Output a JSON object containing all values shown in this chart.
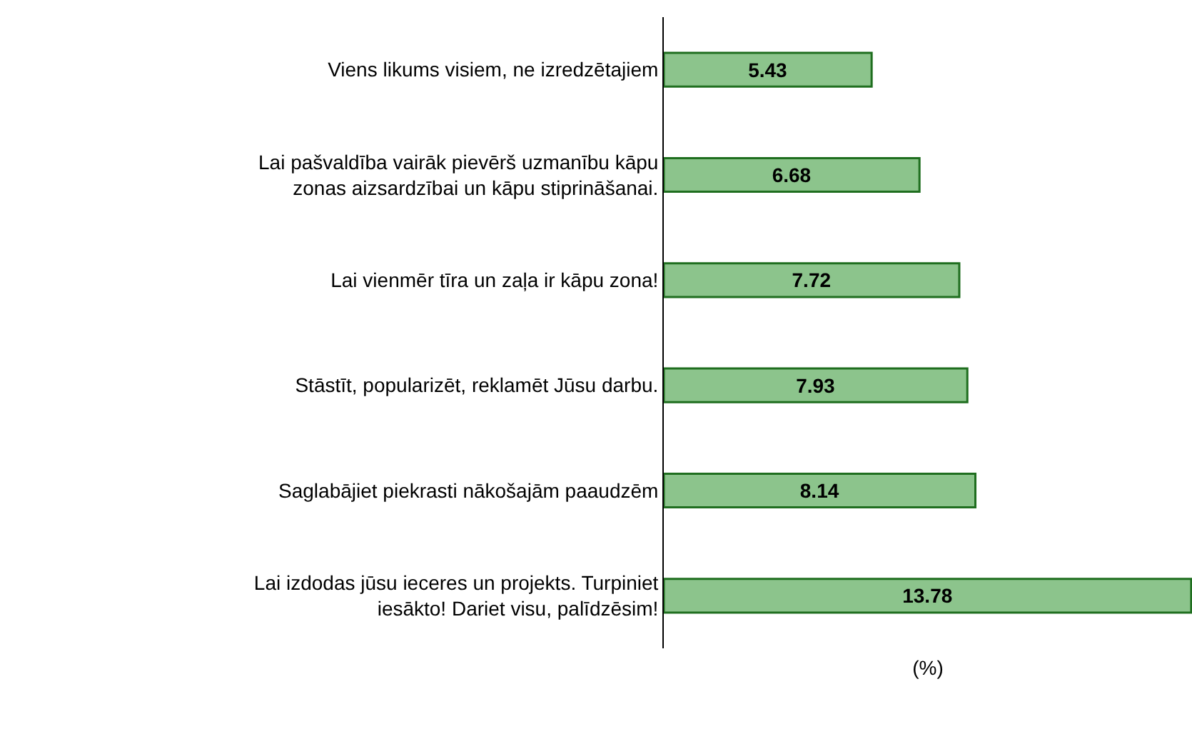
{
  "chart_data": {
    "type": "bar",
    "orientation": "horizontal",
    "categories": [
      "Viens likums visiem, ne izredzētajiem",
      "Lai pašvaldība vairāk pievērš uzmanību kāpu zonas aizsardzībai un kāpu stiprināšanai.",
      "Lai vienmēr tīra un zaļa ir kāpu zona!",
      "Stāstīt, popularizēt, reklamēt Jūsu darbu.",
      "Saglabājiet piekrasti nākošajām paaudzēm",
      "Lai izdodas jūsu ieceres un projekts. Turpiniet iesākto! Dariet visu, palīdzēsim!"
    ],
    "values": [
      5.43,
      6.68,
      7.72,
      7.93,
      8.14,
      13.78
    ],
    "color": "#8cc48c",
    "xlabel": "(%)",
    "xlim": [
      0,
      13.8
    ],
    "data_labels": true,
    "tick_labels": "y"
  }
}
